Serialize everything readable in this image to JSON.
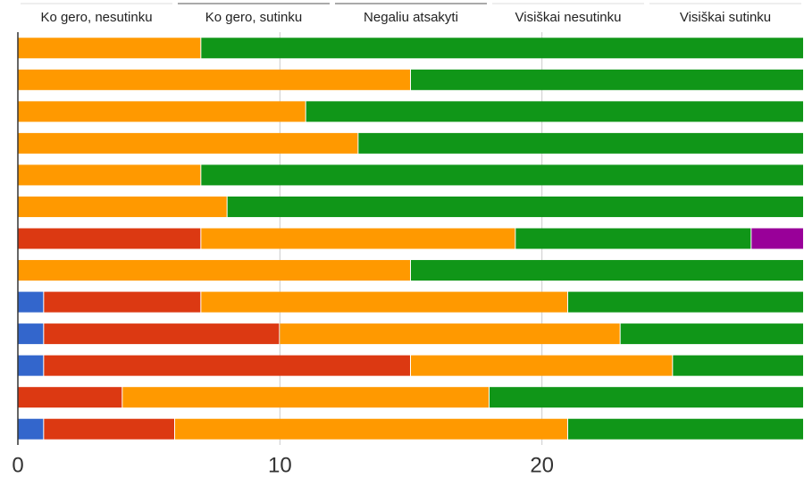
{
  "chart_data": {
    "type": "stacked-bar-horizontal",
    "categories": [
      null,
      null,
      null,
      null,
      null,
      null,
      null,
      null,
      null,
      null,
      null,
      null,
      null
    ],
    "series": [
      {
        "name": "Ko gero, nesutinku",
        "color": "#3366cc",
        "values": [
          0,
          0,
          0,
          0,
          0,
          0,
          0,
          0,
          1,
          1,
          1,
          0,
          1
        ]
      },
      {
        "name": "Ko gero, sutinku",
        "color": "#dc3912",
        "values": [
          0,
          0,
          0,
          0,
          0,
          0,
          7,
          0,
          6,
          9,
          14,
          4,
          5
        ]
      },
      {
        "name": "Negaliu atsakyti",
        "color": "#ff9900",
        "values": [
          7,
          15,
          11,
          13,
          7,
          8,
          12,
          15,
          14,
          13,
          10,
          14,
          15
        ]
      },
      {
        "name": "Visiškai nesutinku",
        "color": "#109618",
        "values": [
          23,
          15,
          19,
          17,
          23,
          22,
          9,
          15,
          9,
          7,
          5,
          12,
          9
        ]
      },
      {
        "name": "Visiškai sutinku",
        "color": "#990099",
        "values": [
          0,
          0,
          0,
          0,
          0,
          0,
          2,
          0,
          0,
          0,
          0,
          0,
          0
        ]
      }
    ],
    "xlim": [
      0,
      30
    ],
    "xticks": [
      0,
      10,
      20
    ],
    "grid": true
  }
}
